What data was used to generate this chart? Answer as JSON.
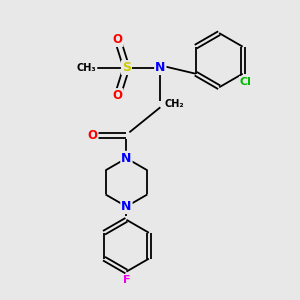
{
  "bg_color": "#e8e8e8",
  "bond_color": "#000000",
  "atom_colors": {
    "O": "#ff0000",
    "N": "#0000ff",
    "S": "#cccc00",
    "Cl": "#00bb00",
    "F": "#ee00ee",
    "C": "#000000"
  },
  "figsize": [
    3.0,
    3.0
  ],
  "dpi": 100,
  "lw": 1.3,
  "fs": 7.5
}
